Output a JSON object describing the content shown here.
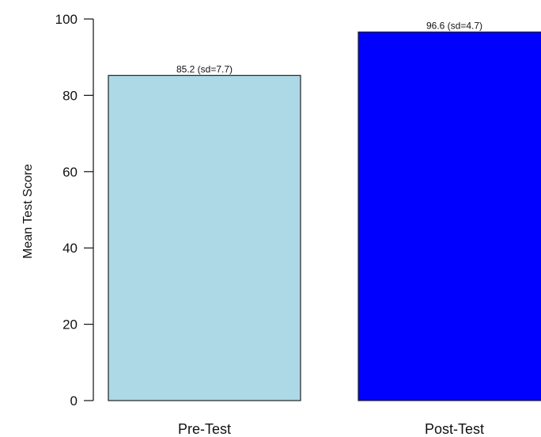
{
  "chart_data": {
    "type": "bar",
    "categories": [
      "Pre-Test",
      "Post-Test"
    ],
    "values": [
      85.2,
      96.6
    ],
    "data_labels": [
      "85.2 (sd=7.7)",
      "96.6 (sd=4.7)"
    ],
    "bar_colors": [
      "#add8e6",
      "#0000ff"
    ],
    "title": "",
    "xlabel": "",
    "ylabel": "Mean Test Score",
    "ylim": [
      0,
      100
    ],
    "yticks": [
      0,
      20,
      40,
      60,
      80,
      100
    ],
    "grid": false,
    "legend": "none"
  }
}
